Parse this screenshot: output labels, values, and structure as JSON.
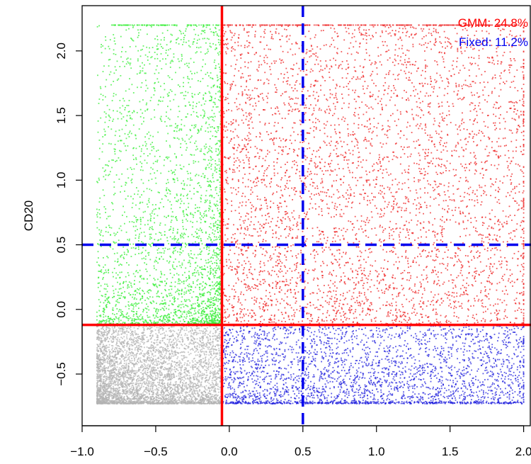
{
  "chart_data": {
    "type": "scatter",
    "title": "",
    "xlabel": "",
    "ylabel": "CD20",
    "xlim": [
      -1.0,
      2.05
    ],
    "ylim": [
      -0.9,
      2.35
    ],
    "x_ticks": [
      -1.0,
      -0.5,
      0.0,
      0.5,
      1.0,
      1.5,
      2.0
    ],
    "x_tick_labels": [
      "−1.0",
      "−0.5",
      "0.0",
      "0.5",
      "1.0",
      "1.5",
      "2.0"
    ],
    "y_ticks": [
      -0.5,
      0.0,
      0.5,
      1.0,
      1.5,
      2.0
    ],
    "y_tick_labels": [
      "−0.5",
      "0.0",
      "0.5",
      "1.0",
      "1.5",
      "2.0"
    ],
    "grid": false,
    "point_cloud": {
      "x_range": [
        -0.9,
        2.0
      ],
      "y_range": [
        -0.73,
        2.2
      ]
    },
    "series": [
      {
        "color": "#b3b3b3",
        "region": {
          "x": [
            -0.9,
            -0.05
          ],
          "y": [
            -0.73,
            -0.12
          ]
        }
      },
      {
        "color": "#33ee33",
        "region": {
          "x": [
            -0.9,
            -0.05
          ],
          "y": [
            -0.12,
            2.2
          ]
        }
      },
      {
        "color": "#ee2222",
        "region": {
          "x": [
            -0.05,
            2.0
          ],
          "y": [
            -0.12,
            2.2
          ]
        }
      },
      {
        "color": "#2222dd",
        "region": {
          "x": [
            -0.05,
            2.0
          ],
          "y": [
            -0.73,
            -0.12
          ]
        }
      }
    ],
    "gates": {
      "gmm": {
        "color": "#ff0000",
        "style": "solid",
        "x": -0.05,
        "y": -0.12
      },
      "fixed": {
        "color": "#0000ee",
        "style": "dashed",
        "x": 0.5,
        "y": 0.5
      }
    },
    "legend": {
      "placement": "top-right",
      "entries": [
        {
          "label": "GMM: 24.8%",
          "color": "#ff0000"
        },
        {
          "label": "Fixed: 11.2%",
          "color": "#0000ee"
        }
      ]
    }
  }
}
